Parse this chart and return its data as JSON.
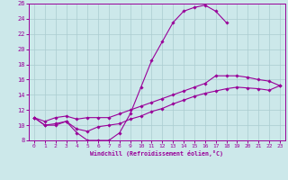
{
  "bg_color": "#cce8ea",
  "line_color": "#990099",
  "grid_color": "#aaccd0",
  "xlabel": "Windchill (Refroidissement éolien,°C)",
  "xlim": [
    -0.5,
    23.5
  ],
  "ylim": [
    8,
    26
  ],
  "yticks": [
    8,
    10,
    12,
    14,
    16,
    18,
    20,
    22,
    24,
    26
  ],
  "xticks": [
    0,
    1,
    2,
    3,
    4,
    5,
    6,
    7,
    8,
    9,
    10,
    11,
    12,
    13,
    14,
    15,
    16,
    17,
    18,
    19,
    20,
    21,
    22,
    23
  ],
  "curve_a_x": [
    0,
    1,
    2,
    3,
    4,
    5,
    6,
    7,
    8,
    9,
    10,
    11,
    12,
    13,
    14,
    15,
    16,
    17,
    18
  ],
  "curve_a_y": [
    11,
    10,
    10,
    10.5,
    9,
    8,
    8,
    8,
    9,
    11.5,
    15,
    18.5,
    21,
    23.5,
    25,
    25.5,
    25.8,
    25,
    23.5
  ],
  "curve_b_x": [
    0,
    1,
    2,
    3,
    4,
    5,
    6,
    7,
    8,
    9,
    10,
    11,
    12,
    13,
    14,
    15,
    16,
    17,
    18,
    19,
    20,
    21,
    22,
    23
  ],
  "curve_b_y": [
    11,
    10.5,
    11,
    11.2,
    10.8,
    11,
    11,
    11,
    11.5,
    12,
    12.5,
    13,
    13.5,
    14,
    14.5,
    15,
    15.5,
    16.5,
    16.5,
    16.5,
    16.3,
    16,
    15.8,
    15.2
  ],
  "curve_c_x": [
    0,
    1,
    2,
    3,
    4,
    5,
    6,
    7,
    8,
    9,
    10,
    11,
    12,
    13,
    14,
    15,
    16,
    17,
    18,
    19,
    20,
    21,
    22,
    23
  ],
  "curve_c_y": [
    11,
    10,
    10.2,
    10.5,
    9.5,
    9.2,
    9.8,
    10,
    10.2,
    10.8,
    11.2,
    11.8,
    12.2,
    12.8,
    13.3,
    13.8,
    14.2,
    14.5,
    14.8,
    15,
    14.9,
    14.8,
    14.6,
    15.2
  ]
}
